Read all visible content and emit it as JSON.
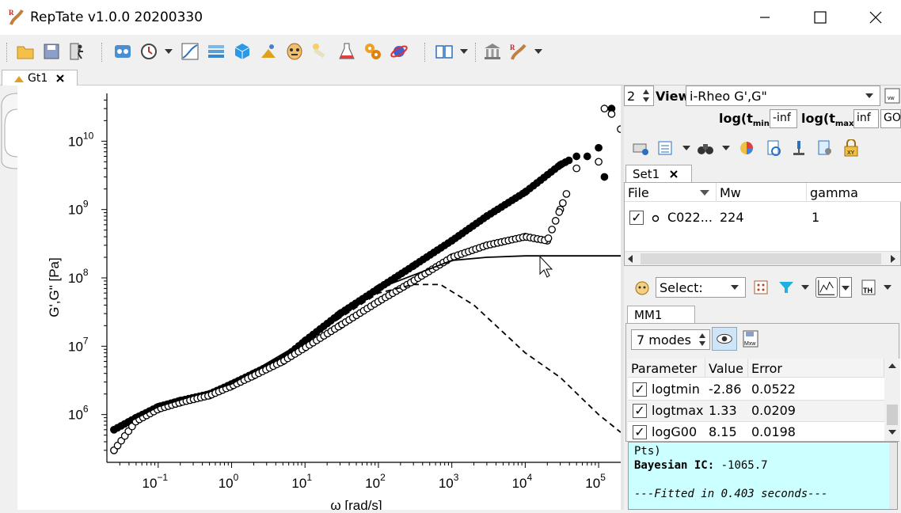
{
  "window": {
    "title": "RepTate v1.0.0 20200330"
  },
  "toolbar": {
    "icons": [
      "open-folder-icon",
      "save-icon",
      "exit-runner-icon",
      "new-application-icon",
      "history-dropdown-icon",
      "react-curve-icon",
      "layers-icon",
      "cube-icon",
      "sparkle-icon",
      "mask-icon",
      "bone-icon",
      "flask-icon",
      "gear-cluster-icon",
      "planet-icon",
      "manual-book-icon",
      "museum-icon",
      "reptate-logo-icon"
    ]
  },
  "doc_tab": {
    "label": "Gt1"
  },
  "plot": {
    "ylabel": "G',G\" [Pa]",
    "xlabel": "ω [rad/s]",
    "x_ticks": [
      {
        "base": "10",
        "exp": "−1"
      },
      {
        "base": "10",
        "exp": "0"
      },
      {
        "base": "10",
        "exp": "1"
      },
      {
        "base": "10",
        "exp": "2"
      },
      {
        "base": "10",
        "exp": "3"
      },
      {
        "base": "10",
        "exp": "4"
      },
      {
        "base": "10",
        "exp": "5"
      }
    ],
    "y_ticks": [
      {
        "base": "10",
        "exp": "6"
      },
      {
        "base": "10",
        "exp": "7"
      },
      {
        "base": "10",
        "exp": "8"
      },
      {
        "base": "10",
        "exp": "9"
      },
      {
        "base": "10",
        "exp": "10"
      }
    ]
  },
  "chart_data": {
    "type": "scatter",
    "title": "",
    "xlabel": "ω [rad/s]",
    "ylabel": "G',G\" [Pa]",
    "xscale": "log",
    "yscale": "log",
    "xlim": [
      0.02,
      200000
    ],
    "ylim": [
      200000,
      50000000000
    ],
    "series": [
      {
        "kind": "filled-circles",
        "x": [
          0.025,
          0.05,
          0.1,
          0.2,
          0.5,
          1,
          2,
          5,
          10,
          30,
          100,
          300,
          1000,
          3000,
          10000,
          30000,
          50000,
          70000,
          100000,
          120000,
          150000
        ],
        "y": [
          600000,
          900000,
          1300000,
          1600000,
          2000000,
          2800000,
          4000000,
          6500000,
          12000000,
          30000000,
          70000000,
          150000000,
          350000000,
          800000000,
          1800000000,
          4500000000,
          6000000000,
          6000000000,
          8000000000,
          3000000000,
          30000000000
        ]
      },
      {
        "kind": "open-circles",
        "x": [
          0.025,
          0.05,
          0.1,
          0.2,
          0.5,
          1,
          2,
          5,
          10,
          30,
          100,
          300,
          1000,
          3000,
          10000,
          20000,
          30000,
          50000,
          100000,
          120000,
          150000,
          200000
        ],
        "y": [
          300000,
          800000,
          1200000,
          1500000,
          1900000,
          2600000,
          3700000,
          6000000,
          9500000,
          20000000,
          45000000,
          90000000,
          200000000,
          300000000,
          400000000,
          350000000,
          1000000000,
          4000000000,
          5000000000,
          30000000000,
          25000000000,
          15000000000
        ]
      },
      {
        "kind": "solid-line",
        "x": [
          0.025,
          0.1,
          1,
          10,
          100,
          1000,
          3000,
          10000,
          200000
        ],
        "y": [
          600000,
          1300000,
          2800000,
          12000000,
          70000000,
          180000000,
          200000000,
          210000000,
          210000000
        ]
      },
      {
        "kind": "dashed-line",
        "x": [
          10,
          100,
          300,
          700,
          2000,
          10000,
          30000,
          100000,
          200000
        ],
        "y": [
          12000000,
          60000000,
          80000000,
          80000000,
          40000000,
          8000000,
          3500000,
          1000000,
          550000
        ]
      }
    ]
  },
  "panel": {
    "view_spin": "2",
    "view_label": "View",
    "view_value": "i-Rheo G',G\"",
    "tmin_label": "log(t",
    "tmin_sub": "min",
    "tmin_close": ")",
    "tmin_value": "-inf",
    "tmax_label": "log(t",
    "tmax_sub": "max",
    "tmax_close": ")",
    "tmax_value": "inf",
    "go_label": "GO",
    "set_tab": "Set1",
    "file_table": {
      "columns": [
        "File",
        "Mw",
        "gamma"
      ],
      "rows": [
        {
          "file": "C022...",
          "mw": "224",
          "gamma": "1"
        }
      ]
    },
    "select_label": "Select:",
    "theory_tab": "MM1",
    "modes_value": "7 modes",
    "param_table": {
      "columns": [
        "Parameter",
        "Value",
        "Error"
      ],
      "rows": [
        {
          "name": "logtmin",
          "value": "-2.86",
          "error": "0.0522"
        },
        {
          "name": "logtmax",
          "value": "1.33",
          "error": "0.0209"
        },
        {
          "name": "logG00",
          "value": "8.15",
          "error": "0.0198"
        }
      ]
    },
    "console": {
      "line1": "Pts)",
      "line2_label": "Bayesian IC:",
      "line2_value": "-1065.7",
      "line3": "",
      "line4": "---Fitted in 0.403 seconds---"
    }
  },
  "colors": {
    "console_bg": "#ccffff",
    "accent_blue": "#1e90ff"
  }
}
